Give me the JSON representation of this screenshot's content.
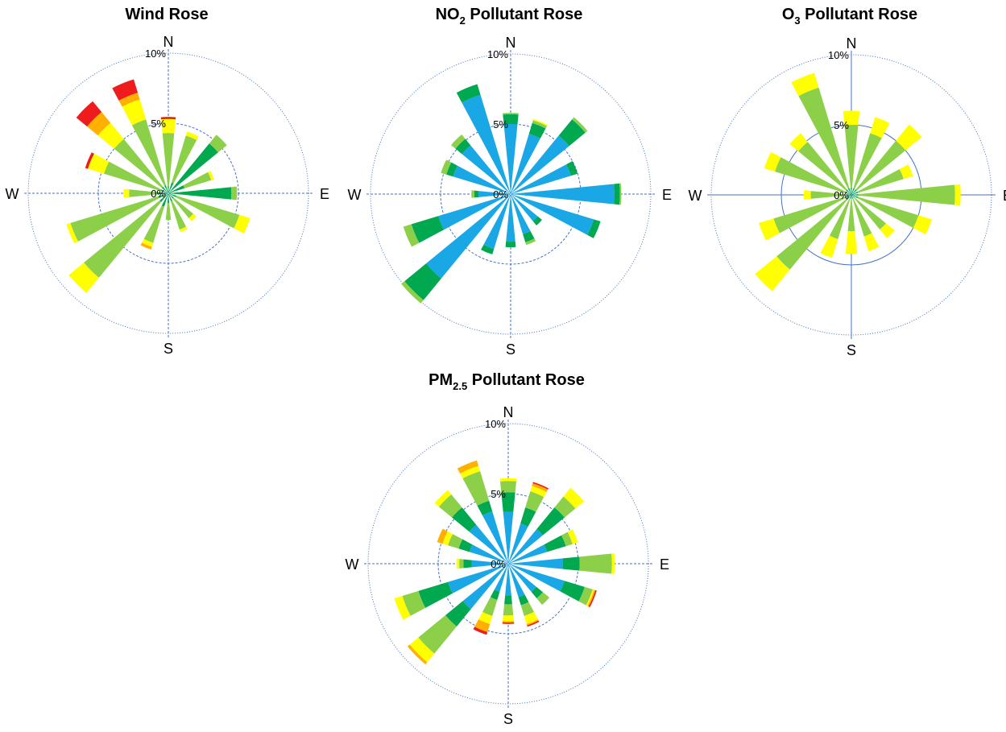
{
  "colors": {
    "grid": "#4472c4",
    "band_blue": "#19a7e6",
    "band_darkgreen": "#00a850",
    "band_lightgreen": "#8cd04a",
    "band_yellow": "#ffff00",
    "band_orange": "#ffb000",
    "band_red": "#ee1c1c"
  },
  "chart_data": [
    {
      "type": "polar-bar",
      "title": "Wind Rose",
      "title_main": "Wind Rose",
      "title_sub": "",
      "title_tail": "",
      "directions": [
        "N",
        "NNE",
        "NE",
        "ENE",
        "E",
        "ESE",
        "SE",
        "SSE",
        "S",
        "SSW",
        "SW",
        "WSW",
        "W",
        "WNW",
        "NW",
        "NNW"
      ],
      "compass_labels": {
        "N": "N",
        "E": "E",
        "S": "S",
        "W": "W"
      },
      "radial_labels": [
        "0%",
        "5%",
        "10%"
      ],
      "rmax": 10,
      "ring_style": {
        "5": "dashed",
        "10": "dotted"
      },
      "bands": [
        "band_darkgreen",
        "band_lightgreen",
        "band_yellow",
        "band_orange",
        "band_red"
      ],
      "stacks": [
        [
          0.5,
          3.8,
          1.0,
          0.0,
          0.15
        ],
        [
          0.8,
          3.5,
          0.3,
          0.0,
          0.0
        ],
        [
          4.6,
          0.8,
          0.0,
          0.0,
          0.0
        ],
        [
          1.2,
          2.0,
          0.2,
          0.0,
          0.0
        ],
        [
          4.5,
          0.4,
          0.0,
          0.0,
          0.0
        ],
        [
          0.6,
          4.7,
          0.8,
          0.0,
          0.0
        ],
        [
          0.5,
          1.8,
          0.3,
          0.0,
          0.0
        ],
        [
          0.6,
          2.1,
          0.2,
          0.0,
          0.0
        ],
        [
          0.7,
          1.2,
          0.0,
          0.0,
          0.0
        ],
        [
          1.0,
          2.7,
          0.3,
          0.2,
          0.0
        ],
        [
          0.8,
          7.0,
          1.4,
          0.0,
          0.0
        ],
        [
          0.7,
          6.6,
          0.3,
          0.0,
          0.0
        ],
        [
          0.8,
          2.0,
          0.4,
          0.0,
          0.0
        ],
        [
          0.6,
          4.2,
          1.2,
          0.0,
          0.2
        ],
        [
          0.6,
          4.4,
          1.5,
          1.0,
          1.0
        ],
        [
          0.6,
          4.9,
          1.5,
          0.5,
          1.0
        ]
      ]
    },
    {
      "type": "polar-bar",
      "title": "NO2 Pollutant Rose",
      "title_main": "NO",
      "title_sub": "2",
      "title_tail": " Pollutant Rose",
      "directions": [
        "N",
        "NNE",
        "NE",
        "ENE",
        "E",
        "ESE",
        "SE",
        "SSE",
        "S",
        "SSW",
        "SW",
        "WSW",
        "W",
        "WNW",
        "NW",
        "NNW"
      ],
      "compass_labels": {
        "N": "N",
        "E": "E",
        "S": "S",
        "W": "W"
      },
      "radial_labels": [
        "0%",
        "5%",
        "10%"
      ],
      "rmax": 10,
      "ring_style": {
        "5": "dashed",
        "10": "dotted"
      },
      "bands": [
        "band_blue",
        "band_darkgreen",
        "band_lightgreen",
        "band_yellow"
      ],
      "stacks": [
        [
          5.0,
          0.7,
          0.1,
          0.0
        ],
        [
          4.5,
          0.8,
          0.2,
          0.1
        ],
        [
          5.4,
          1.5,
          0.2,
          0.0
        ],
        [
          4.5,
          0.5,
          0.0,
          0.0
        ],
        [
          7.4,
          0.4,
          0.1,
          0.0
        ],
        [
          6.2,
          0.5,
          0.0,
          0.0
        ],
        [
          2.5,
          0.4,
          0.0,
          0.0
        ],
        [
          3.0,
          0.6,
          0.2,
          0.0
        ],
        [
          3.4,
          0.4,
          0.0,
          0.0
        ],
        [
          4.1,
          0.4,
          0.0,
          0.0
        ],
        [
          7.8,
          2.0,
          0.3,
          0.0
        ],
        [
          5.4,
          2.0,
          0.6,
          0.0
        ],
        [
          2.3,
          0.3,
          0.2,
          0.0
        ],
        [
          4.3,
          0.5,
          0.4,
          0.0
        ],
        [
          4.5,
          0.6,
          0.4,
          0.0
        ],
        [
          7.4,
          0.8,
          0.0,
          0.0
        ]
      ]
    },
    {
      "type": "polar-bar",
      "title": "O3 Pollutant Rose",
      "title_main": "O",
      "title_sub": "3",
      "title_tail": " Pollutant Rose",
      "directions": [
        "N",
        "NNE",
        "NE",
        "ENE",
        "E",
        "ESE",
        "SE",
        "SSE",
        "S",
        "SSW",
        "SW",
        "WSW",
        "W",
        "WNW",
        "NW",
        "NNW"
      ],
      "compass_labels": {
        "N": "N",
        "E": "E",
        "S": "S",
        "W": "W"
      },
      "radial_labels": [
        "0%",
        "5%",
        "10%"
      ],
      "rmax": 10,
      "ring_style": {
        "5": "solid",
        "10": "dotted"
      },
      "bands": [
        "band_darkgreen",
        "band_lightgreen",
        "band_yellow"
      ],
      "stacks": [
        [
          0.5,
          4.5,
          1.0
        ],
        [
          0.5,
          4.1,
          1.2
        ],
        [
          0.5,
          4.5,
          1.5
        ],
        [
          0.5,
          3.4,
          0.7
        ],
        [
          0.5,
          6.9,
          0.4
        ],
        [
          0.5,
          4.5,
          1.0
        ],
        [
          0.3,
          2.9,
          0.8
        ],
        [
          0.3,
          2.8,
          1.1
        ],
        [
          0.3,
          2.3,
          1.6
        ],
        [
          0.3,
          3.0,
          1.4
        ],
        [
          0.5,
          6.4,
          2.0
        ],
        [
          0.5,
          5.3,
          1.1
        ],
        [
          0.3,
          2.6,
          0.5
        ],
        [
          0.5,
          5.2,
          0.8
        ],
        [
          0.5,
          4.4,
          0.8
        ],
        [
          0.5,
          7.5,
          1.1
        ]
      ]
    },
    {
      "type": "polar-bar",
      "title": "PM2.5 Pollutant Rose",
      "title_main": "PM",
      "title_sub": "2.5",
      "title_tail": " Pollutant Rose",
      "directions": [
        "N",
        "NNE",
        "NE",
        "ENE",
        "E",
        "ESE",
        "SE",
        "SSE",
        "S",
        "SSW",
        "SW",
        "WSW",
        "W",
        "WNW",
        "NW",
        "NNW"
      ],
      "compass_labels": {
        "N": "N",
        "E": "E",
        "S": "S",
        "W": "W"
      },
      "radial_labels": [
        "0%",
        "5%",
        "10%"
      ],
      "rmax": 10,
      "ring_style": {
        "5": "dashed",
        "10": "dotted"
      },
      "bands": [
        "band_blue",
        "band_darkgreen",
        "band_lightgreen",
        "band_yellow",
        "band_orange",
        "band_red"
      ],
      "stacks": [
        [
          3.7,
          1.4,
          0.8,
          0.2,
          0.0,
          0.0
        ],
        [
          3.0,
          1.2,
          1.2,
          0.4,
          0.2,
          0.1
        ],
        [
          3.2,
          2.0,
          1.0,
          0.8,
          0.0,
          0.0
        ],
        [
          2.9,
          1.4,
          0.5,
          0.4,
          0.0,
          0.0
        ],
        [
          3.9,
          1.2,
          2.3,
          0.2,
          0.0,
          0.0
        ],
        [
          4.2,
          1.5,
          0.6,
          0.1,
          0.1,
          0.1
        ],
        [
          2.6,
          0.6,
          0.6,
          0.0,
          0.0,
          0.0
        ],
        [
          2.5,
          0.6,
          0.8,
          0.6,
          0.1,
          0.1
        ],
        [
          2.3,
          0.6,
          0.8,
          0.4,
          0.1,
          0.1
        ],
        [
          2.1,
          0.6,
          1.2,
          0.6,
          0.6,
          0.2
        ],
        [
          4.2,
          1.6,
          2.5,
          0.8,
          0.2,
          0.0
        ],
        [
          4.5,
          2.2,
          1.2,
          0.6,
          0.0,
          0.0
        ],
        [
          2.6,
          0.6,
          0.3,
          0.2,
          0.0,
          0.0
        ],
        [
          2.9,
          0.8,
          0.8,
          0.4,
          0.4,
          0.0
        ],
        [
          3.6,
          1.6,
          1.2,
          0.4,
          0.0,
          0.0
        ],
        [
          3.9,
          0.8,
          2.2,
          0.4,
          0.4,
          0.0
        ]
      ]
    }
  ]
}
